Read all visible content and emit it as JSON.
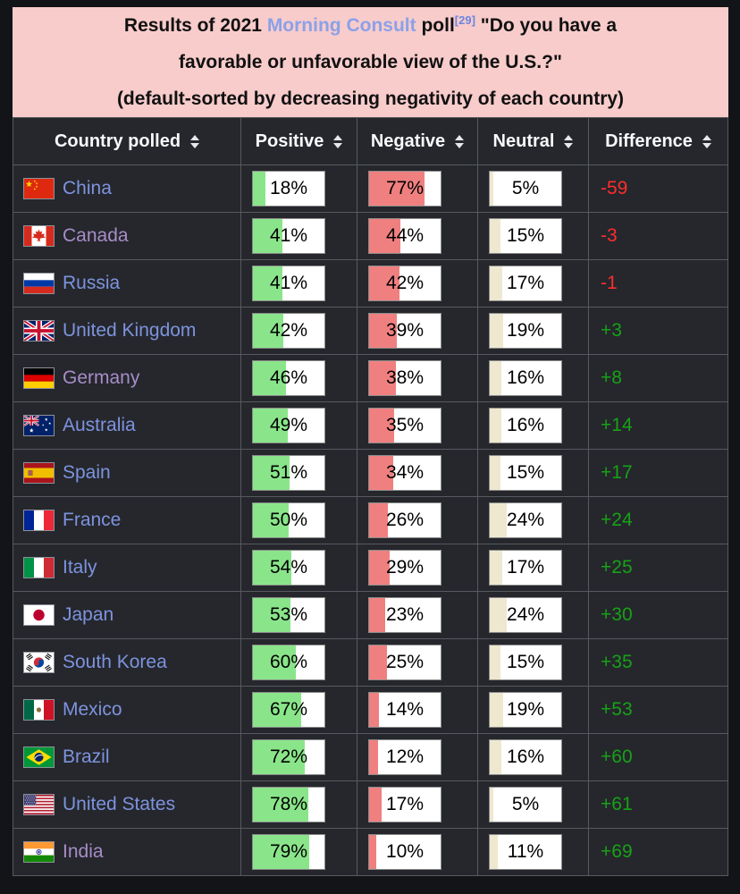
{
  "caption": {
    "before_link": "Results of 2021 ",
    "link_text": "Morning Consult",
    "after_link": " poll",
    "ref_label": "[29]",
    "line1_tail": " \"Do you have a",
    "line2": "favorable or unfavorable view of the U.S.?\"",
    "line3": "(default-sorted by decreasing negativity of each country)"
  },
  "columns": [
    {
      "label": "Country polled",
      "sortable": true
    },
    {
      "label": "Positive",
      "sortable": true
    },
    {
      "label": "Negative",
      "sortable": true
    },
    {
      "label": "Neutral",
      "sortable": true
    },
    {
      "label": "Difference",
      "sortable": true
    }
  ],
  "rows": [
    {
      "country": "China",
      "slug": "china",
      "flag": "cn",
      "visited": false,
      "positive": 18,
      "positive_label": "18%",
      "negative": 77,
      "negative_label": "77%",
      "neutral": 5,
      "neutral_label": "5%",
      "difference": -59,
      "difference_label": "-59"
    },
    {
      "country": "Canada",
      "slug": "canada",
      "flag": "ca",
      "visited": true,
      "positive": 41,
      "positive_label": "41%",
      "negative": 44,
      "negative_label": "44%",
      "neutral": 15,
      "neutral_label": "15%",
      "difference": -3,
      "difference_label": "-3"
    },
    {
      "country": "Russia",
      "slug": "russia",
      "flag": "ru",
      "visited": false,
      "positive": 41,
      "positive_label": "41%",
      "negative": 42,
      "negative_label": "42%",
      "neutral": 17,
      "neutral_label": "17%",
      "difference": -1,
      "difference_label": "-1"
    },
    {
      "country": "United Kingdom",
      "slug": "united-kingdom",
      "flag": "gb",
      "visited": false,
      "positive": 42,
      "positive_label": "42%",
      "negative": 39,
      "negative_label": "39%",
      "neutral": 19,
      "neutral_label": "19%",
      "difference": 3,
      "difference_label": "+3"
    },
    {
      "country": "Germany",
      "slug": "germany",
      "flag": "de",
      "visited": true,
      "positive": 46,
      "positive_label": "46%",
      "negative": 38,
      "negative_label": "38%",
      "neutral": 16,
      "neutral_label": "16%",
      "difference": 8,
      "difference_label": "+8"
    },
    {
      "country": "Australia",
      "slug": "australia",
      "flag": "au",
      "visited": false,
      "positive": 49,
      "positive_label": "49%",
      "negative": 35,
      "negative_label": "35%",
      "neutral": 16,
      "neutral_label": "16%",
      "difference": 14,
      "difference_label": "+14"
    },
    {
      "country": "Spain",
      "slug": "spain",
      "flag": "es",
      "visited": false,
      "positive": 51,
      "positive_label": "51%",
      "negative": 34,
      "negative_label": "34%",
      "neutral": 15,
      "neutral_label": "15%",
      "difference": 17,
      "difference_label": "+17"
    },
    {
      "country": "France",
      "slug": "france",
      "flag": "fr",
      "visited": false,
      "positive": 50,
      "positive_label": "50%",
      "negative": 26,
      "negative_label": "26%",
      "neutral": 24,
      "neutral_label": "24%",
      "difference": 24,
      "difference_label": "+24"
    },
    {
      "country": "Italy",
      "slug": "italy",
      "flag": "it",
      "visited": false,
      "positive": 54,
      "positive_label": "54%",
      "negative": 29,
      "negative_label": "29%",
      "neutral": 17,
      "neutral_label": "17%",
      "difference": 25,
      "difference_label": "+25"
    },
    {
      "country": "Japan",
      "slug": "japan",
      "flag": "jp",
      "visited": false,
      "positive": 53,
      "positive_label": "53%",
      "negative": 23,
      "negative_label": "23%",
      "neutral": 24,
      "neutral_label": "24%",
      "difference": 30,
      "difference_label": "+30"
    },
    {
      "country": "South Korea",
      "slug": "south-korea",
      "flag": "kr",
      "visited": false,
      "positive": 60,
      "positive_label": "60%",
      "negative": 25,
      "negative_label": "25%",
      "neutral": 15,
      "neutral_label": "15%",
      "difference": 35,
      "difference_label": "+35"
    },
    {
      "country": "Mexico",
      "slug": "mexico",
      "flag": "mx",
      "visited": false,
      "positive": 67,
      "positive_label": "67%",
      "negative": 14,
      "negative_label": "14%",
      "neutral": 19,
      "neutral_label": "19%",
      "difference": 53,
      "difference_label": "+53"
    },
    {
      "country": "Brazil",
      "slug": "brazil",
      "flag": "br",
      "visited": false,
      "positive": 72,
      "positive_label": "72%",
      "negative": 12,
      "negative_label": "12%",
      "neutral": 16,
      "neutral_label": "16%",
      "difference": 60,
      "difference_label": "+60"
    },
    {
      "country": "United States",
      "slug": "united-states",
      "flag": "us",
      "visited": false,
      "positive": 78,
      "positive_label": "78%",
      "negative": 17,
      "negative_label": "17%",
      "neutral": 5,
      "neutral_label": "5%",
      "difference": 61,
      "difference_label": "+61"
    },
    {
      "country": "India",
      "slug": "india",
      "flag": "in",
      "visited": true,
      "positive": 79,
      "positive_label": "79%",
      "negative": 10,
      "negative_label": "10%",
      "neutral": 11,
      "neutral_label": "11%",
      "difference": 69,
      "difference_label": "+69"
    }
  ],
  "colors": {
    "caption_bg": "#f8cccb",
    "positive_bar": "#8ae58a",
    "negative_bar": "#f08080",
    "neutral_bar": "#eee8d0",
    "difference_positive": "#17a117",
    "difference_negative": "#ff2d2d",
    "link": "#7d93de",
    "link_visited": "#a78dc8"
  },
  "chart_data": {
    "type": "table",
    "title": "Results of 2021 Morning Consult poll \"Do you have a favorable or unfavorable view of the U.S.?\" (default-sorted by decreasing negativity of each country)",
    "columns": [
      "Country polled",
      "Positive",
      "Negative",
      "Neutral",
      "Difference"
    ],
    "rows": [
      [
        "China",
        18,
        77,
        5,
        -59
      ],
      [
        "Canada",
        41,
        44,
        15,
        -3
      ],
      [
        "Russia",
        41,
        42,
        17,
        -1
      ],
      [
        "United Kingdom",
        42,
        39,
        19,
        3
      ],
      [
        "Germany",
        46,
        38,
        16,
        8
      ],
      [
        "Australia",
        49,
        35,
        16,
        14
      ],
      [
        "Spain",
        51,
        34,
        15,
        17
      ],
      [
        "France",
        50,
        26,
        24,
        24
      ],
      [
        "Italy",
        54,
        29,
        17,
        25
      ],
      [
        "Japan",
        53,
        23,
        24,
        30
      ],
      [
        "South Korea",
        60,
        25,
        15,
        35
      ],
      [
        "Mexico",
        67,
        14,
        19,
        53
      ],
      [
        "Brazil",
        72,
        12,
        16,
        60
      ],
      [
        "United States",
        78,
        17,
        5,
        61
      ],
      [
        "India",
        79,
        10,
        11,
        69
      ]
    ],
    "bar_unit": "percent",
    "bar_range": [
      0,
      100
    ]
  }
}
